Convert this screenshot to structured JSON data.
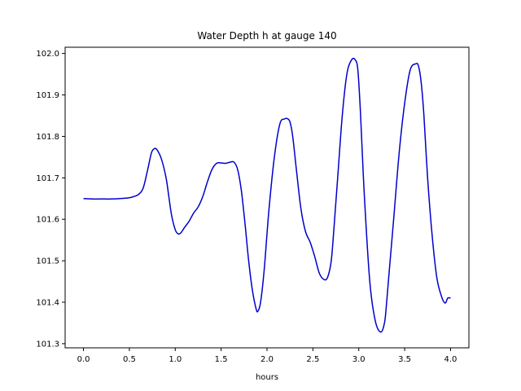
{
  "chart_data": {
    "type": "line",
    "title": "Water Depth h at gauge 140",
    "xlabel": "hours",
    "ylabel": "",
    "xlim": [
      -0.2,
      4.2
    ],
    "ylim": [
      101.29,
      102.015
    ],
    "xticks": [
      0.0,
      0.5,
      1.0,
      1.5,
      2.0,
      2.5,
      3.0,
      3.5,
      4.0
    ],
    "xtick_labels": [
      "0.0",
      "0.5",
      "1.0",
      "1.5",
      "2.0",
      "2.5",
      "3.0",
      "3.5",
      "4.0"
    ],
    "yticks": [
      101.3,
      101.4,
      101.5,
      101.6,
      101.7,
      101.8,
      101.9,
      102.0
    ],
    "ytick_labels": [
      "101.3",
      "101.4",
      "101.5",
      "101.6",
      "101.7",
      "101.8",
      "101.9",
      "102.0"
    ],
    "grid": false,
    "line_color": "#0000cc",
    "series": [
      {
        "name": "",
        "x": [
          0.0,
          0.1,
          0.2,
          0.3,
          0.4,
          0.5,
          0.55,
          0.6,
          0.65,
          0.7,
          0.74,
          0.77,
          0.8,
          0.85,
          0.9,
          0.93,
          0.96,
          1.0,
          1.03,
          1.06,
          1.1,
          1.15,
          1.2,
          1.25,
          1.3,
          1.35,
          1.4,
          1.45,
          1.5,
          1.55,
          1.6,
          1.64,
          1.68,
          1.72,
          1.76,
          1.8,
          1.84,
          1.88,
          1.9,
          1.93,
          1.97,
          2.02,
          2.08,
          2.14,
          2.19,
          2.22,
          2.25,
          2.28,
          2.32,
          2.37,
          2.42,
          2.47,
          2.52,
          2.57,
          2.62,
          2.66,
          2.7,
          2.73,
          2.77,
          2.82,
          2.87,
          2.92,
          2.96,
          2.99,
          3.02,
          3.06,
          3.12,
          3.18,
          3.24,
          3.28,
          3.3,
          3.33,
          3.38,
          3.44,
          3.5,
          3.56,
          3.62,
          3.65,
          3.68,
          3.71,
          3.75,
          3.8,
          3.85,
          3.9,
          3.94,
          3.97,
          4.0
        ],
        "values": [
          101.65,
          101.649,
          101.649,
          101.649,
          101.65,
          101.652,
          101.655,
          101.66,
          101.675,
          101.72,
          101.76,
          101.77,
          101.768,
          101.745,
          101.7,
          101.655,
          101.61,
          101.575,
          101.565,
          101.567,
          101.58,
          101.595,
          101.615,
          101.63,
          101.655,
          101.69,
          101.72,
          101.735,
          101.736,
          101.735,
          101.738,
          101.738,
          101.72,
          101.67,
          101.59,
          101.5,
          101.43,
          101.385,
          101.378,
          101.4,
          101.48,
          101.62,
          101.75,
          101.83,
          101.842,
          101.843,
          101.835,
          101.8,
          101.72,
          101.625,
          101.57,
          101.545,
          101.51,
          101.47,
          101.455,
          101.46,
          101.5,
          101.58,
          101.7,
          101.85,
          101.95,
          101.984,
          101.985,
          101.96,
          101.85,
          101.66,
          101.45,
          101.355,
          101.328,
          101.35,
          101.39,
          101.47,
          101.6,
          101.76,
          101.88,
          101.96,
          101.975,
          101.97,
          101.93,
          101.85,
          101.7,
          101.56,
          101.46,
          101.415,
          101.398,
          101.41,
          101.41
        ]
      }
    ]
  }
}
